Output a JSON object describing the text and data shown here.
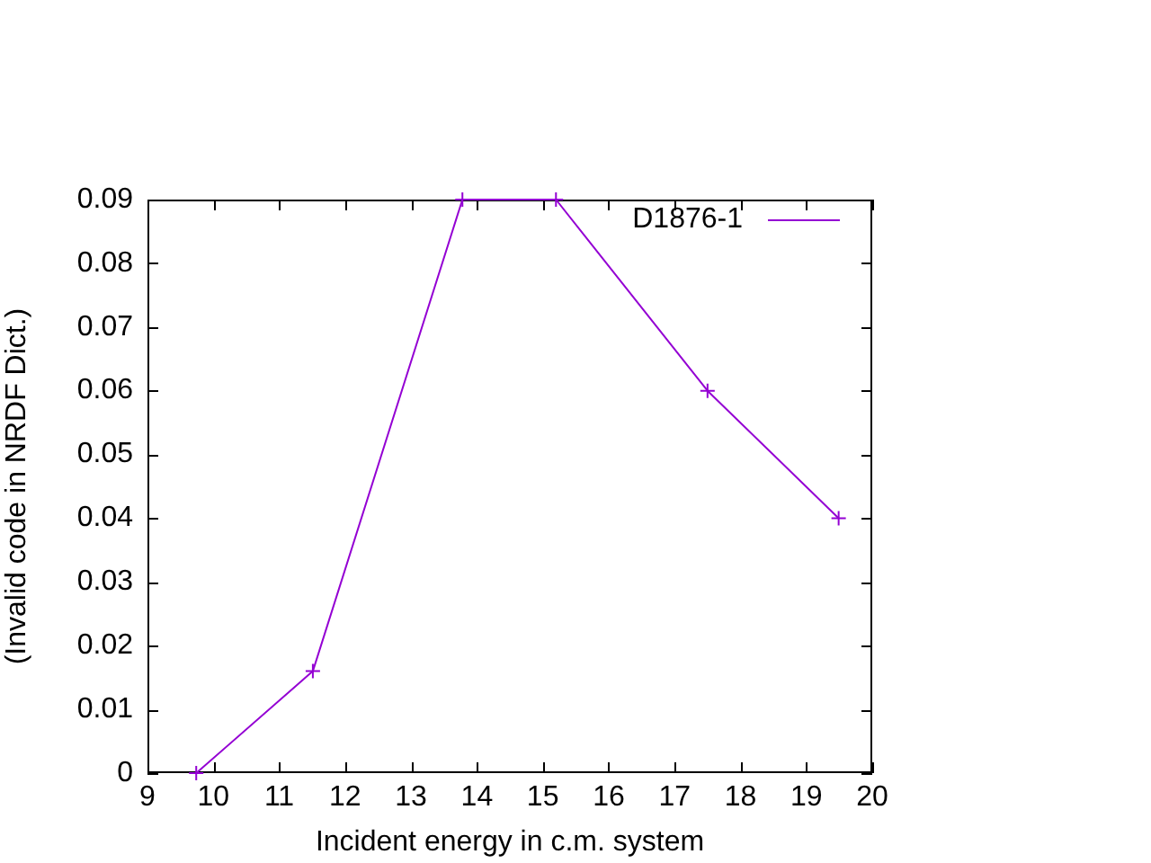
{
  "chart_data": {
    "type": "line",
    "xlabel": "Incident energy in c.m. system",
    "ylabel": "(Invalid code in NRDF Dict.)",
    "xlim": [
      9,
      20
    ],
    "xticks": [
      9,
      10,
      11,
      12,
      13,
      14,
      15,
      16,
      17,
      18,
      19,
      20
    ],
    "ylim": [
      0,
      0.09
    ],
    "yticks": [
      0,
      0.01,
      0.02,
      0.03,
      0.04,
      0.05,
      0.06,
      0.07,
      0.08,
      0.09
    ],
    "x": [
      9.74,
      11.51,
      13.78,
      15.2,
      17.5,
      19.49
    ],
    "series": [
      {
        "name": "D1876-1",
        "color": "#9400d3",
        "values": [
          0,
          0.016,
          0.09,
          0.09,
          0.06,
          0.04
        ]
      }
    ],
    "marker": "cross",
    "line_style": "solid",
    "grid": false,
    "legend": "top right"
  }
}
